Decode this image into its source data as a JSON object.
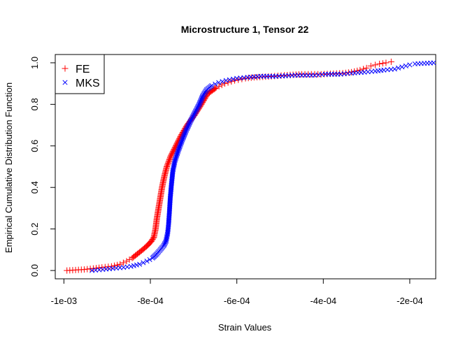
{
  "chart_data": {
    "type": "scatter",
    "title": "Microstructure 1, Tensor 22",
    "xlabel": "Strain Values",
    "ylabel": "Empirical Cumulative Distribution Function",
    "xlim": [
      -0.00102,
      -0.00014
    ],
    "ylim": [
      -0.04,
      1.04
    ],
    "x_ticks": [
      -0.001,
      -0.0008,
      -0.0006,
      -0.0004,
      -0.0002
    ],
    "x_tick_labels": [
      "-1e-03",
      "-8e-04",
      "-6e-04",
      "-4e-04",
      "-2e-04"
    ],
    "y_ticks": [
      0.0,
      0.2,
      0.4,
      0.6,
      0.8,
      1.0
    ],
    "y_tick_labels": [
      "0.0",
      "0.2",
      "0.4",
      "0.6",
      "0.8",
      "1.0"
    ],
    "legend_position": "top-left",
    "grid": false,
    "series": [
      {
        "name": "FE",
        "marker": "+",
        "color": "#ff0000",
        "points": [
          [
            -0.000993,
            0.0
          ],
          [
            -0.000953,
            0.005
          ],
          [
            -0.000932,
            0.01
          ],
          [
            -0.000912,
            0.015
          ],
          [
            -0.00089,
            0.02
          ],
          [
            -0.00087,
            0.03
          ],
          [
            -0.000855,
            0.045
          ],
          [
            -0.000842,
            0.06
          ],
          [
            -0.00083,
            0.08
          ],
          [
            -0.000818,
            0.1
          ],
          [
            -0.000807,
            0.12
          ],
          [
            -0.000798,
            0.14
          ],
          [
            -0.000792,
            0.16
          ],
          [
            -0.000788,
            0.2
          ],
          [
            -0.000785,
            0.25
          ],
          [
            -0.000781,
            0.3
          ],
          [
            -0.000777,
            0.35
          ],
          [
            -0.000773,
            0.4
          ],
          [
            -0.000768,
            0.45
          ],
          [
            -0.000762,
            0.5
          ],
          [
            -0.000753,
            0.55
          ],
          [
            -0.000741,
            0.6
          ],
          [
            -0.000729,
            0.65
          ],
          [
            -0.000715,
            0.7
          ],
          [
            -0.000697,
            0.75
          ],
          [
            -0.000682,
            0.8
          ],
          [
            -0.000668,
            0.85
          ],
          [
            -0.000648,
            0.88
          ],
          [
            -0.000628,
            0.9
          ],
          [
            -0.000605,
            0.915
          ],
          [
            -0.00058,
            0.925
          ],
          [
            -0.00056,
            0.93
          ],
          [
            -0.00052,
            0.935
          ],
          [
            -0.00049,
            0.94
          ],
          [
            -0.00045,
            0.945
          ],
          [
            -0.000405,
            0.945
          ],
          [
            -0.000355,
            0.95
          ],
          [
            -0.000335,
            0.955
          ],
          [
            -0.000315,
            0.965
          ],
          [
            -0.0003,
            0.975
          ],
          [
            -0.00029,
            0.985
          ],
          [
            -0.00028,
            0.99
          ],
          [
            -0.00027,
            0.995
          ],
          [
            -0.000255,
            1.0
          ],
          [
            -0.000243,
            1.005
          ]
        ]
      },
      {
        "name": "MKS",
        "marker": "x",
        "color": "#0000ff",
        "points": [
          [
            -0.000935,
            0.0
          ],
          [
            -0.00091,
            0.005
          ],
          [
            -0.000887,
            0.01
          ],
          [
            -0.000862,
            0.015
          ],
          [
            -0.000845,
            0.02
          ],
          [
            -0.000825,
            0.03
          ],
          [
            -0.000808,
            0.045
          ],
          [
            -0.000795,
            0.06
          ],
          [
            -0.000785,
            0.08
          ],
          [
            -0.000777,
            0.1
          ],
          [
            -0.000769,
            0.12
          ],
          [
            -0.000764,
            0.14
          ],
          [
            -0.00076,
            0.18
          ],
          [
            -0.000758,
            0.22
          ],
          [
            -0.000756,
            0.28
          ],
          [
            -0.000754,
            0.35
          ],
          [
            -0.000751,
            0.42
          ],
          [
            -0.000748,
            0.48
          ],
          [
            -0.000743,
            0.53
          ],
          [
            -0.000735,
            0.58
          ],
          [
            -0.000726,
            0.63
          ],
          [
            -0.000716,
            0.68
          ],
          [
            -0.000707,
            0.72
          ],
          [
            -0.000697,
            0.76
          ],
          [
            -0.000687,
            0.8
          ],
          [
            -0.000679,
            0.84
          ],
          [
            -0.00067,
            0.87
          ],
          [
            -0.000658,
            0.89
          ],
          [
            -0.000642,
            0.905
          ],
          [
            -0.000625,
            0.915
          ],
          [
            -0.0006,
            0.925
          ],
          [
            -0.000575,
            0.93
          ],
          [
            -0.000545,
            0.935
          ],
          [
            -0.00051,
            0.935
          ],
          [
            -0.000465,
            0.94
          ],
          [
            -0.00042,
            0.94
          ],
          [
            -0.000395,
            0.945
          ],
          [
            -0.00036,
            0.945
          ],
          [
            -0.000335,
            0.95
          ],
          [
            -0.000305,
            0.955
          ],
          [
            -0.00028,
            0.96
          ],
          [
            -0.00026,
            0.965
          ],
          [
            -0.000235,
            0.97
          ],
          [
            -0.000218,
            0.98
          ],
          [
            -0.0002,
            0.99
          ],
          [
            -0.000188,
            0.995
          ],
          [
            -0.000145,
            1.0
          ]
        ]
      }
    ]
  }
}
